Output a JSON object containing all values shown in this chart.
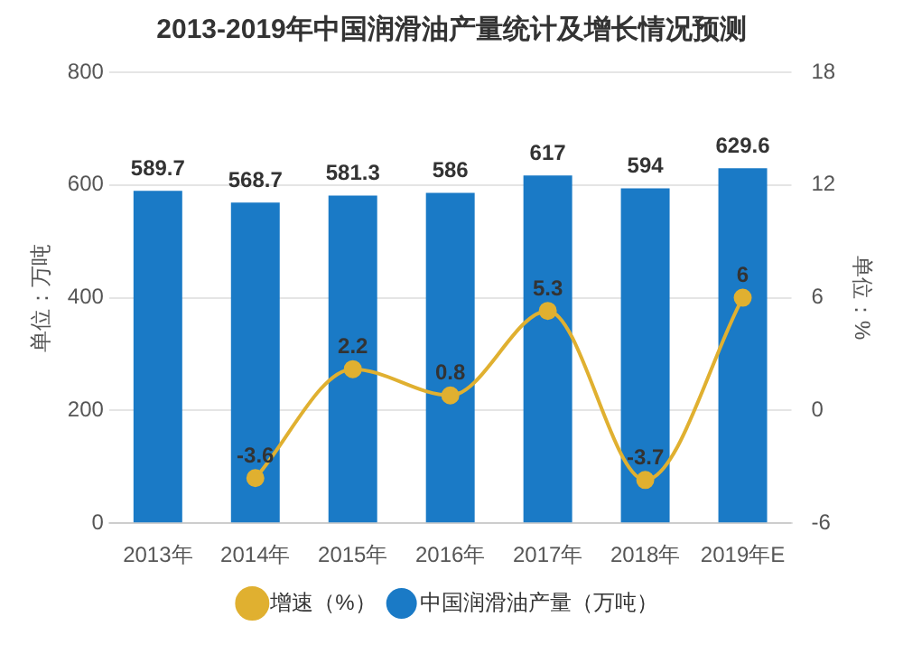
{
  "chart_data": {
    "type": "bar",
    "title": "2013-2019年中国润滑油产量统计及增长情况预测",
    "categories": [
      "2013年",
      "2014年",
      "2015年",
      "2016年",
      "2017年",
      "2018年",
      "2019年E"
    ],
    "series": [
      {
        "name": "中国润滑油产量（万吨）",
        "color": "#1a7ac6",
        "values": [
          589.7,
          568.7,
          581.3,
          586,
          617,
          594,
          629.6
        ]
      },
      {
        "name": "增速（%）",
        "type": "line",
        "axis": "y2",
        "color": "#e0b030",
        "values": [
          null,
          -3.6,
          2.2,
          0.8,
          5.3,
          -3.7,
          6
        ]
      }
    ],
    "ylabel": "单位：万吨",
    "y2label": "单位：%",
    "ylim": [
      0,
      800
    ],
    "yticks": [
      0,
      200,
      400,
      600,
      800
    ],
    "y2lim": [
      -6,
      18
    ],
    "y2ticks": [
      -6,
      0,
      6,
      12,
      18
    ],
    "grid": "y",
    "legend": "bottom",
    "marker": "circle",
    "data_labels": true
  }
}
